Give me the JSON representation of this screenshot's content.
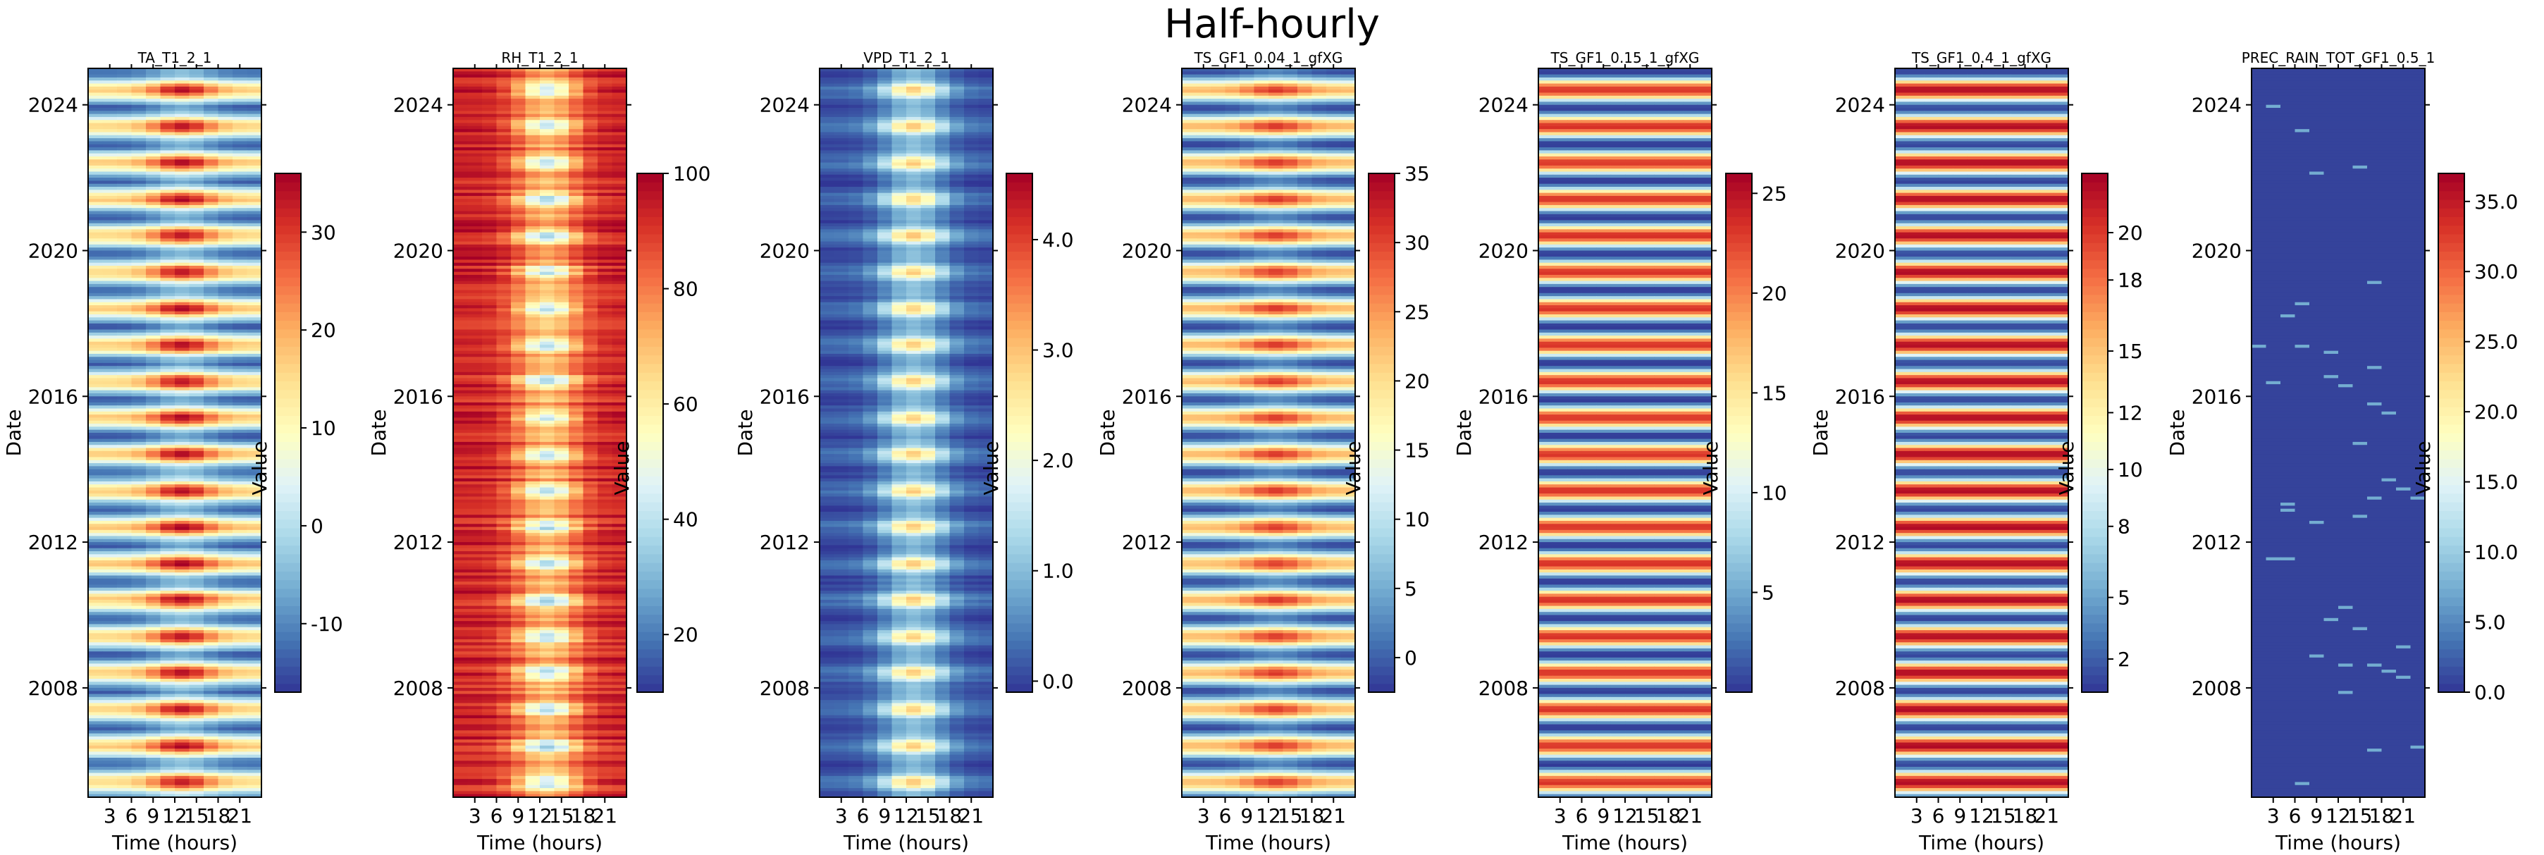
{
  "figure_title": "Half-hourly",
  "colormap": [
    "#313695",
    "#4575b4",
    "#74add1",
    "#abd9e9",
    "#e0f3f8",
    "#ffffbf",
    "#fee090",
    "#fdae61",
    "#f46d43",
    "#d73027",
    "#a50026"
  ],
  "chart_data": [
    {
      "type": "heatmap",
      "title": "TA_T1_2_1",
      "xlabel": "Time (hours)",
      "ylabel": "Date",
      "colorbar_label": "Value",
      "x_ticks": [
        "3",
        "6",
        "9",
        "12",
        "15",
        "18",
        "21"
      ],
      "y_ticks": [
        "2008",
        "2012",
        "2016",
        "2020",
        "2024"
      ],
      "x_range": [
        0,
        24
      ],
      "y_range": [
        2005,
        2025
      ],
      "value_range": [
        -17,
        36
      ],
      "colorbar_ticks": [
        "-10",
        "0",
        "10",
        "20",
        "30"
      ],
      "colorbar_tick_values": [
        -10,
        0,
        10,
        20,
        30
      ]
    },
    {
      "type": "heatmap",
      "title": "RH_T1_2_1",
      "xlabel": "Time (hours)",
      "ylabel": "Date",
      "colorbar_label": "Value",
      "x_ticks": [
        "3",
        "6",
        "9",
        "12",
        "15",
        "18",
        "21"
      ],
      "y_ticks": [
        "2008",
        "2012",
        "2016",
        "2020",
        "2024"
      ],
      "x_range": [
        0,
        24
      ],
      "y_range": [
        2005,
        2025
      ],
      "value_range": [
        10,
        100
      ],
      "colorbar_ticks": [
        "20",
        "40",
        "60",
        "80",
        "100"
      ],
      "colorbar_tick_values": [
        20,
        40,
        60,
        80,
        100
      ]
    },
    {
      "type": "heatmap",
      "title": "VPD_T1_2_1",
      "xlabel": "Time (hours)",
      "ylabel": "Date",
      "colorbar_label": "Value",
      "x_ticks": [
        "3",
        "6",
        "9",
        "12",
        "15",
        "18",
        "21"
      ],
      "y_ticks": [
        "2008",
        "2012",
        "2016",
        "2020",
        "2024"
      ],
      "x_range": [
        0,
        24
      ],
      "y_range": [
        2005,
        2025
      ],
      "value_range": [
        -0.1,
        4.6
      ],
      "colorbar_ticks": [
        "0.0",
        "1.0",
        "2.0",
        "3.0",
        "4.0"
      ],
      "colorbar_tick_values": [
        0,
        1,
        2,
        3,
        4
      ]
    },
    {
      "type": "heatmap",
      "title": "TS_GF1_0.04_1_gfXG",
      "xlabel": "Time (hours)",
      "ylabel": "Date",
      "colorbar_label": "Value",
      "x_ticks": [
        "3",
        "6",
        "9",
        "12",
        "15",
        "18",
        "21"
      ],
      "y_ticks": [
        "2008",
        "2012",
        "2016",
        "2020",
        "2024"
      ],
      "x_range": [
        0,
        24
      ],
      "y_range": [
        2005,
        2025
      ],
      "value_range": [
        -2.5,
        35
      ],
      "colorbar_ticks": [
        "0",
        "5",
        "10",
        "15",
        "20",
        "25",
        "30",
        "35"
      ],
      "colorbar_tick_values": [
        0,
        5,
        10,
        15,
        20,
        25,
        30,
        35
      ]
    },
    {
      "type": "heatmap",
      "title": "TS_GF1_0.15_1_gfXG",
      "xlabel": "Time (hours)",
      "ylabel": "Date",
      "colorbar_label": "Value",
      "x_ticks": [
        "3",
        "6",
        "9",
        "12",
        "15",
        "18",
        "21"
      ],
      "y_ticks": [
        "2008",
        "2012",
        "2016",
        "2020",
        "2024"
      ],
      "x_range": [
        0,
        24
      ],
      "y_range": [
        2005,
        2025
      ],
      "value_range": [
        0,
        26
      ],
      "colorbar_ticks": [
        "5",
        "10",
        "15",
        "20",
        "25"
      ],
      "colorbar_tick_values": [
        5,
        10,
        15,
        20,
        25
      ]
    },
    {
      "type": "heatmap",
      "title": "TS_GF1_0.4_1_gfXG",
      "xlabel": "Time (hours)",
      "ylabel": "Date",
      "colorbar_label": "Value",
      "x_ticks": [
        "3",
        "6",
        "9",
        "12",
        "15",
        "18",
        "21"
      ],
      "y_ticks": [
        "2008",
        "2012",
        "2016",
        "2020",
        "2024"
      ],
      "x_range": [
        0,
        24
      ],
      "y_range": [
        2005,
        2025
      ],
      "value_range": [
        0.6,
        22.5
      ],
      "colorbar_ticks": [
        "2",
        "5",
        "8",
        "10",
        "12",
        "15",
        "18",
        "20"
      ],
      "colorbar_tick_values": [
        2,
        4.6,
        7.6,
        10,
        12.4,
        15,
        18,
        20
      ]
    },
    {
      "type": "heatmap",
      "title": "PREC_RAIN_TOT_GF1_0.5_1",
      "xlabel": "Time (hours)",
      "ylabel": "Date",
      "colorbar_label": "Value",
      "x_ticks": [
        "3",
        "6",
        "9",
        "12",
        "15",
        "18",
        "21"
      ],
      "y_ticks": [
        "2008",
        "2012",
        "2016",
        "2020",
        "2024"
      ],
      "x_range": [
        0,
        24
      ],
      "y_range": [
        2005,
        2025
      ],
      "value_range": [
        0,
        37
      ],
      "colorbar_ticks": [
        "0.0",
        "5.0",
        "10.0",
        "15.0",
        "20.0",
        "25.0",
        "30.0",
        "35.0"
      ],
      "colorbar_tick_values": [
        0,
        5,
        10,
        15,
        20,
        25,
        30,
        35
      ]
    }
  ]
}
